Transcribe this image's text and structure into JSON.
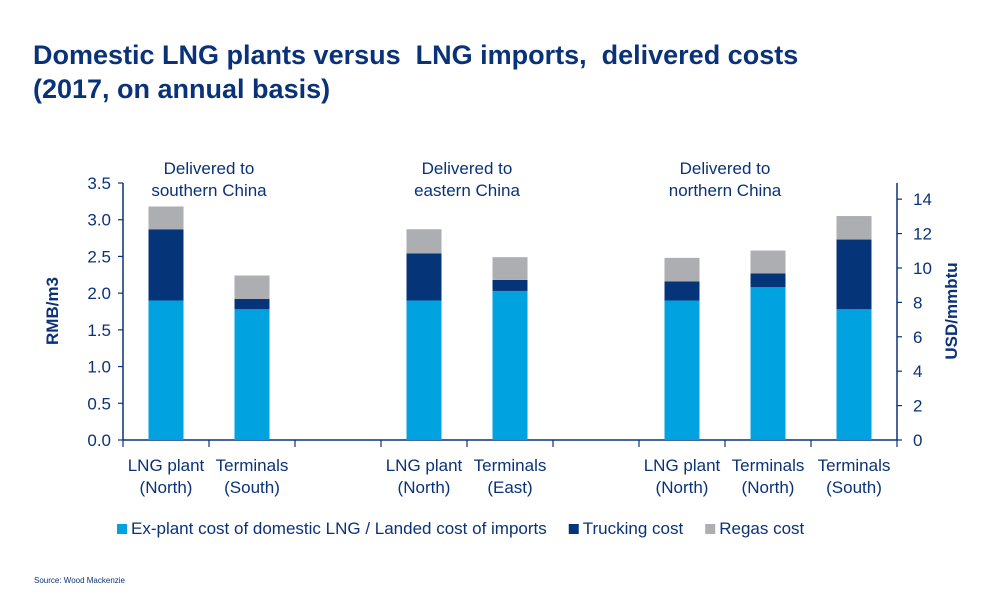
{
  "chart_data": {
    "type": "bar",
    "stacked": true,
    "title": "Domestic LNG plants versus  LNG imports,  delivered costs\n(2017, on annual basis)",
    "ylabel": "RMB/m3",
    "ylabel_right": "USD/mmbtu",
    "ylim": [
      0,
      3.5
    ],
    "ylim_right": [
      0,
      14.94
    ],
    "yticks": [
      "0.0",
      "0.5",
      "1.0",
      "1.5",
      "2.0",
      "2.5",
      "3.0",
      "3.5"
    ],
    "yticks_right": [
      "0",
      "2",
      "4",
      "6",
      "8",
      "10",
      "12",
      "14"
    ],
    "grid": false,
    "legend_placement": "bottom",
    "groups": [
      {
        "label": "Delivered to\nsouthern  China",
        "categories": [
          "LNG plant\n(North)",
          "Terminals\n(South)",
          ""
        ]
      },
      {
        "label": "Delivered to\neastern China",
        "categories": [
          "LNG plant\n(North)",
          "Terminals\n(East)",
          ""
        ]
      },
      {
        "label": "Delivered  to\nnorthern China",
        "categories": [
          "LNG plant\n(North)",
          "Terminals\n(North)",
          "Terminals\n(South)"
        ]
      }
    ],
    "categories": [
      "LNG plant\n(North)",
      "Terminals\n(South)",
      "",
      "LNG plant\n(North)",
      "Terminals\n(East)",
      "",
      "LNG plant\n(North)",
      "Terminals\n(North)",
      "Terminals\n(South)"
    ],
    "series": [
      {
        "name": "Ex-plant cost of domestic LNG / Landed cost of imports",
        "color": "#00a3e0",
        "values": [
          1.9,
          1.78,
          null,
          1.9,
          2.03,
          null,
          1.9,
          2.08,
          1.78
        ]
      },
      {
        "name": "Trucking cost",
        "color": "#063478",
        "values": [
          0.97,
          0.14,
          null,
          0.64,
          0.15,
          null,
          0.26,
          0.19,
          0.95
        ]
      },
      {
        "name": "Regas cost",
        "color": "#adaeb1",
        "values": [
          0.31,
          0.32,
          null,
          0.33,
          0.31,
          null,
          0.32,
          0.31,
          0.32
        ]
      }
    ]
  },
  "source": "Source: Wood Mackenzie"
}
